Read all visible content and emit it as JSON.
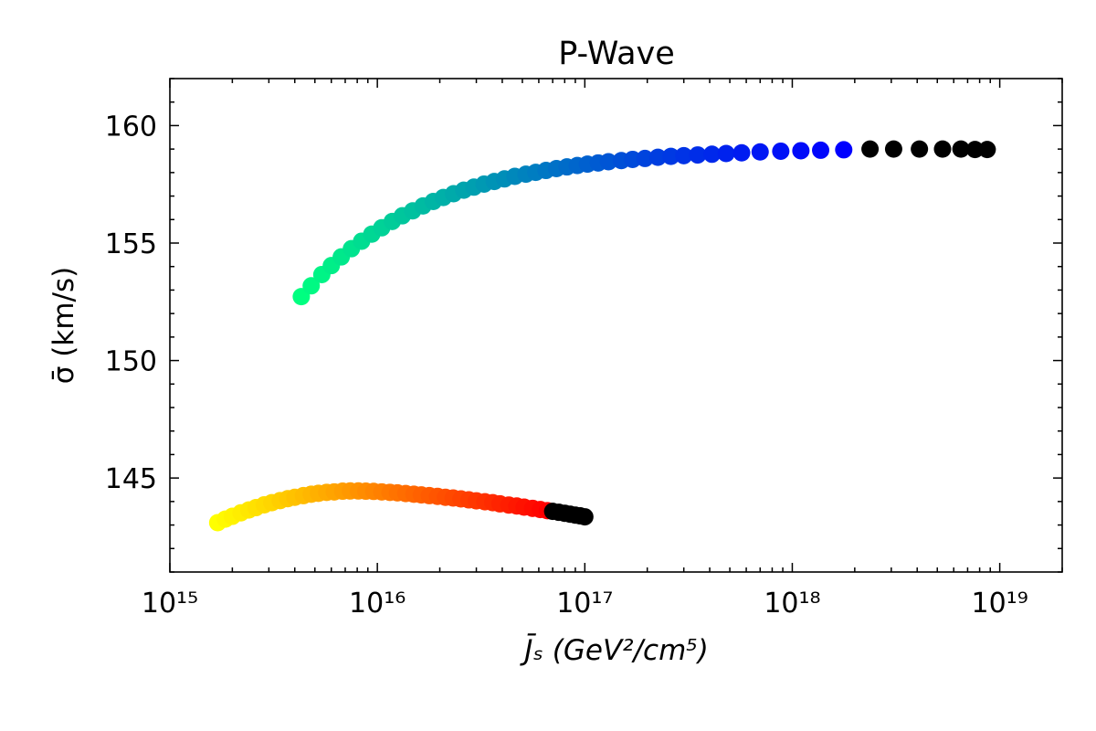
{
  "chart_data": {
    "type": "scatter",
    "title": "P-Wave",
    "xlabel": "J̄ₛ (GeV²/cm⁵)",
    "ylabel": "σ̄ (km/s)",
    "xscale": "log",
    "xlim": [
      1000000000000000.0,
      2e+19
    ],
    "ylim": [
      141,
      162
    ],
    "grid": false,
    "legend": "none",
    "tick_direction": "in",
    "xticks": [
      1000000000000000.0,
      1e+16,
      1e+17,
      1e+18,
      1e+19
    ],
    "xtick_labels": [
      "10¹⁵",
      "10¹⁶",
      "10¹⁷",
      "10¹⁸",
      "10¹⁹"
    ],
    "yticks": [
      145,
      150,
      155,
      160
    ],
    "ytick_labels": [
      "145",
      "150",
      "155",
      "160"
    ],
    "series": [
      {
        "colormap": "winter",
        "color_start": "#00ff80",
        "color_end": "#0000ff",
        "tail_color": "#000000",
        "x": [
          4300000000000000.0,
          4800000000000000.0,
          5400000000000000.0,
          6000000000000000.0,
          6700000000000000.0,
          7500000000000000.0,
          8400000000000000.0,
          9400000000000000.0,
          1.05e+16,
          1.18e+16,
          1.32e+16,
          1.48e+16,
          1.66e+16,
          1.86e+16,
          2.08e+16,
          2.33e+16,
          2.61e+16,
          2.92e+16,
          3.27e+16,
          3.66e+16,
          4.1e+16,
          4.6e+16,
          5.2e+16,
          5.8e+16,
          6.5e+16,
          7.3e+16,
          8.2e+16,
          9.2e+16,
          1.03e+17,
          1.16e+17,
          1.3e+17,
          1.5e+17,
          1.7e+17,
          1.95e+17,
          2.25e+17,
          2.6e+17,
          3e+17,
          3.5e+17,
          4.1e+17,
          4.8e+17,
          5.7e+17,
          7e+17,
          8.8e+17,
          1.1e+18,
          1.37e+18,
          1.77e+18
        ],
        "y": [
          152.72,
          153.18,
          153.66,
          154.04,
          154.41,
          154.76,
          155.08,
          155.38,
          155.65,
          155.92,
          156.16,
          156.37,
          156.58,
          156.77,
          156.94,
          157.1,
          157.25,
          157.38,
          157.51,
          157.62,
          157.73,
          157.84,
          157.93,
          158.01,
          158.09,
          158.17,
          158.24,
          158.3,
          158.36,
          158.41,
          158.46,
          158.51,
          158.56,
          158.6,
          158.65,
          158.69,
          158.72,
          158.75,
          158.78,
          158.81,
          158.84,
          158.88,
          158.91,
          158.93,
          158.95,
          158.97
        ],
        "tail_x": [
          2.37e+18,
          3.08e+18,
          4.1e+18,
          5.3e+18,
          6.5e+18,
          7.6e+18,
          8.7e+18
        ],
        "tail_y": [
          159.0,
          159.0,
          159.0,
          159.0,
          159.0,
          158.98,
          158.98
        ]
      },
      {
        "colormap": "autumn",
        "color_start": "#ffff00",
        "color_end": "#ff0000",
        "tail_color": "#000000",
        "x": [
          1700000000000000.0,
          1850000000000000.0,
          2000000000000000.0,
          2200000000000000.0,
          2400000000000000.0,
          2600000000000000.0,
          2850000000000000.0,
          3100000000000000.0,
          3400000000000000.0,
          3700000000000000.0,
          4000000000000000.0,
          4400000000000000.0,
          4800000000000000.0,
          5200000000000000.0,
          5700000000000000.0,
          6200000000000000.0,
          6800000000000000.0,
          7400000000000000.0,
          8100000000000000.0,
          8800000000000000.0,
          9600000000000000.0,
          1.05e+16,
          1.15e+16,
          1.25e+16,
          1.37e+16,
          1.5e+16,
          1.63e+16,
          1.78e+16,
          1.95e+16,
          2.13e+16,
          2.32e+16,
          2.53e+16,
          2.76e+16,
          3e+16,
          3.3e+16,
          3.6e+16,
          3.9e+16,
          4.3e+16,
          4.7e+16,
          5.1e+16,
          5.6e+16,
          6.1e+16,
          6.6e+16
        ],
        "y": [
          143.1,
          143.25,
          143.37,
          143.52,
          143.64,
          143.74,
          143.86,
          143.95,
          144.04,
          144.12,
          144.18,
          144.25,
          144.31,
          144.35,
          144.39,
          144.41,
          144.44,
          144.45,
          144.45,
          144.44,
          144.43,
          144.41,
          144.39,
          144.37,
          144.34,
          144.31,
          144.28,
          144.25,
          144.22,
          144.18,
          144.15,
          144.11,
          144.07,
          144.03,
          143.99,
          143.95,
          143.9,
          143.85,
          143.81,
          143.76,
          143.71,
          143.66,
          143.61
        ],
        "tail_x": [
          7e+16,
          7.5e+16,
          8e+16,
          8.5e+16,
          9e+16,
          9.5e+16,
          1e+17
        ],
        "tail_y": [
          143.58,
          143.54,
          143.5,
          143.46,
          143.42,
          143.39,
          143.35
        ]
      }
    ]
  }
}
